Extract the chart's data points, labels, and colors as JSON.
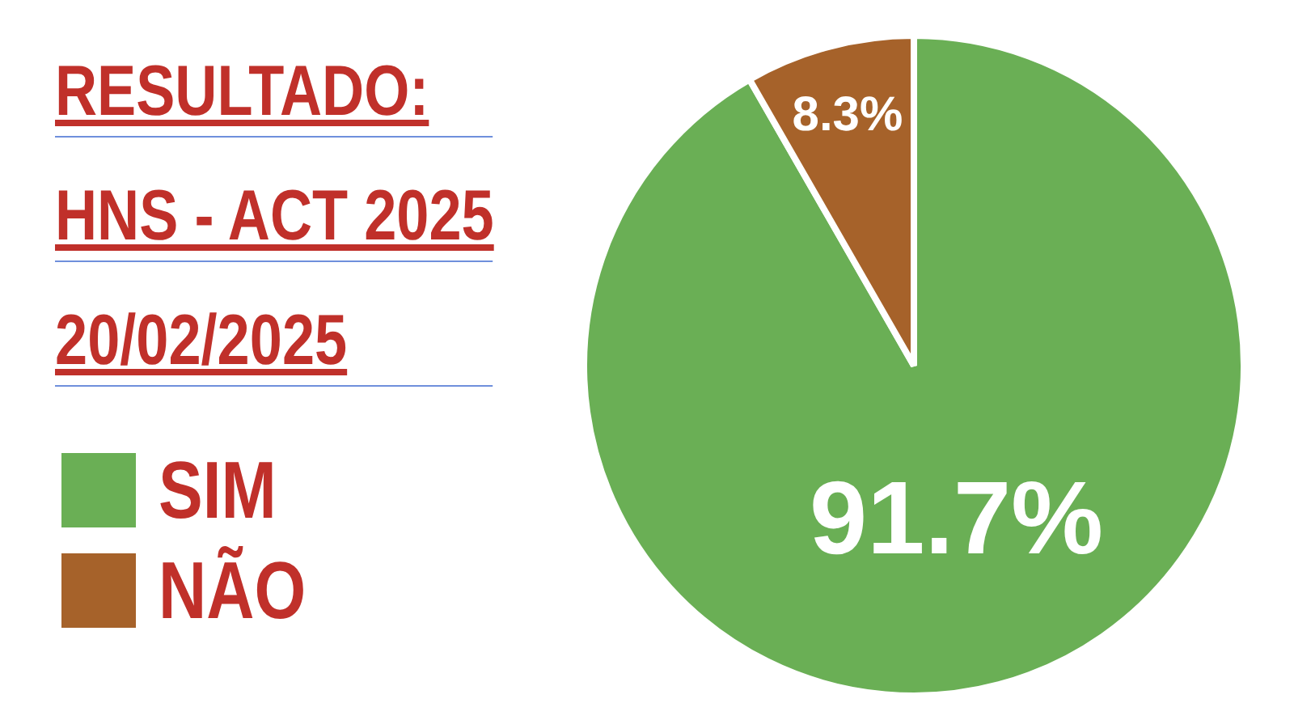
{
  "chart_data": {
    "type": "pie",
    "title": "RESULTADO:\nHNS - ACT 2025\n20/02/2025",
    "categories": [
      "SIM",
      "NÃO"
    ],
    "values": [
      91.7,
      8.3
    ],
    "colors": [
      "#6aaf55",
      "#a6622a"
    ],
    "value_labels": [
      "91.7%",
      "8.3%"
    ],
    "legend": "left"
  }
}
